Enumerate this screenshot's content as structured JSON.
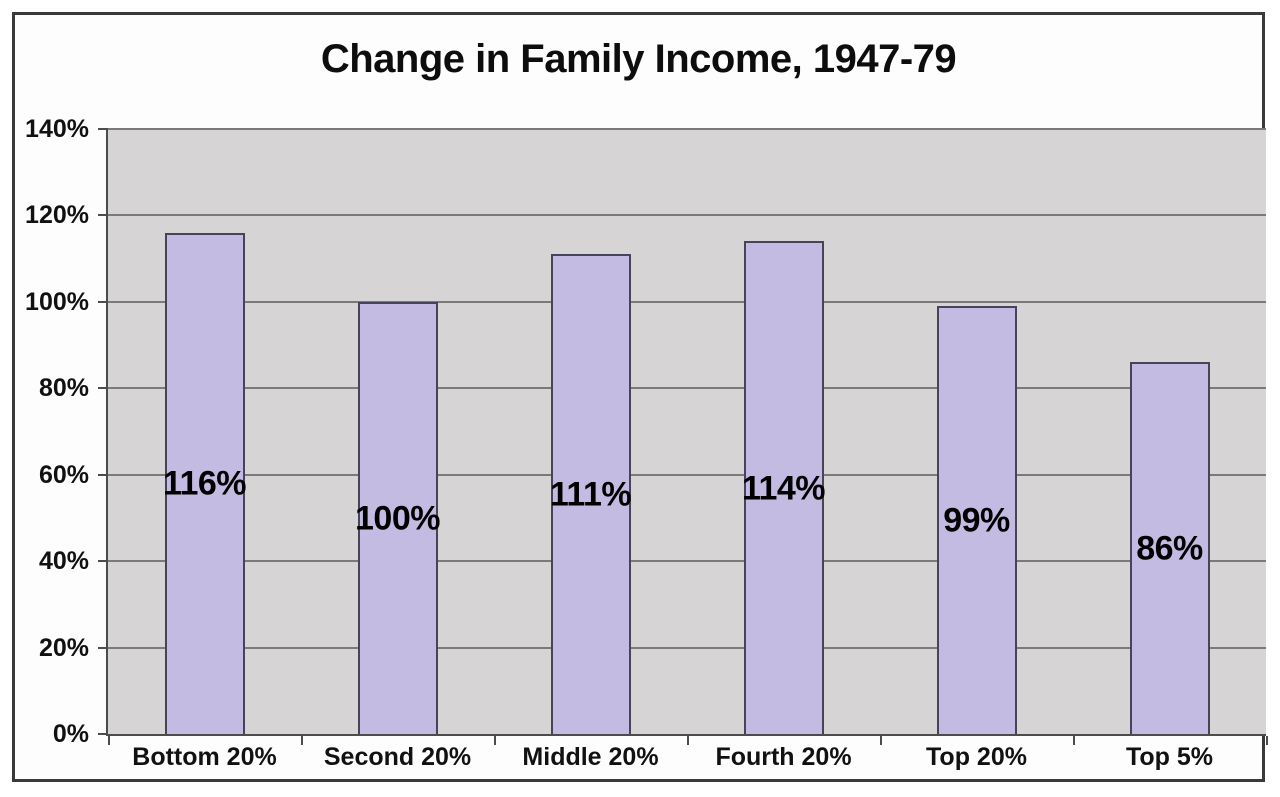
{
  "chart_data": {
    "type": "bar",
    "title": "Change in Family Income, 1947-79",
    "categories": [
      "Bottom 20%",
      "Second 20%",
      "Middle 20%",
      "Fourth 20%",
      "Top 20%",
      "Top 5%"
    ],
    "values": [
      116,
      100,
      111,
      114,
      99,
      86
    ],
    "bar_labels": [
      "116%",
      "100%",
      "111%",
      "114%",
      "99%",
      "86%"
    ],
    "xlabel": "",
    "ylabel": "",
    "ylim": [
      0,
      140
    ],
    "ytick_step": 20,
    "ytick_values": [
      0,
      20,
      40,
      60,
      80,
      100,
      120,
      140
    ],
    "ytick_labels": [
      "0%",
      "20%",
      "40%",
      "60%",
      "80%",
      "100%",
      "120%",
      "140%"
    ],
    "grid": true,
    "legend": "none",
    "colors": {
      "bar_fill": "#c3bbe2",
      "bar_border": "#45455a",
      "plot_background": "#d6d4d4",
      "gridline": "#7a7a7a",
      "axis": "#4c4c4c",
      "frame_border": "#3a3a3a",
      "page_background": "#fdfdfd",
      "text": "#000000"
    }
  }
}
